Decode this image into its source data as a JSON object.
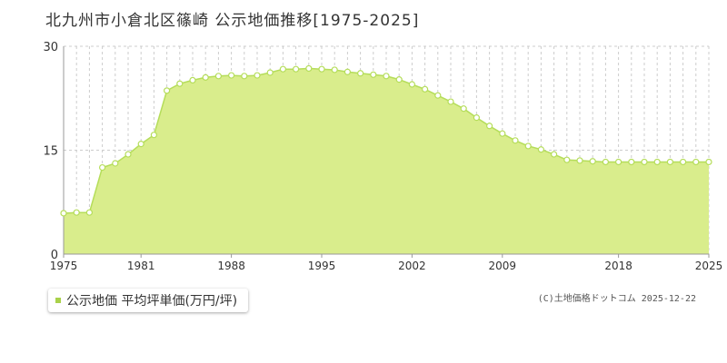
{
  "colors": {
    "fill": "#d9ed8c",
    "line": "#b5dd5a",
    "point_fill": "#ffffff",
    "point_stroke": "#b5dd5a",
    "grid": "#cccccc",
    "axis": "#999999",
    "legend_swatch": "#a9d14a"
  },
  "copyright": "(C)土地価格ドットコム 2025-12-22",
  "chart_data": {
    "type": "area",
    "title": "北九州市小倉北区篠崎 公示地価推移[1975-2025]",
    "xlabel": "",
    "ylabel": "",
    "xlim": [
      1975,
      2025
    ],
    "ylim": [
      0,
      30
    ],
    "yticks": [
      0,
      15,
      30
    ],
    "xticks": [
      1975,
      1981,
      1988,
      1995,
      2002,
      2009,
      2018,
      2025
    ],
    "grid": true,
    "legend_position": "bottom-left",
    "series": [
      {
        "name": "公示地価 平均坪単価(万円/坪)",
        "x": [
          1975,
          1976,
          1977,
          1978,
          1979,
          1980,
          1981,
          1982,
          1983,
          1984,
          1985,
          1986,
          1987,
          1988,
          1989,
          1990,
          1991,
          1992,
          1993,
          1994,
          1995,
          1996,
          1997,
          1998,
          1999,
          2000,
          2001,
          2002,
          2003,
          2004,
          2005,
          2006,
          2007,
          2008,
          2009,
          2010,
          2011,
          2012,
          2013,
          2014,
          2015,
          2016,
          2017,
          2018,
          2019,
          2020,
          2021,
          2022,
          2023,
          2024,
          2025
        ],
        "y": [
          5.9,
          6.0,
          6.0,
          12.5,
          13.1,
          14.4,
          15.9,
          17.2,
          23.6,
          24.6,
          25.1,
          25.5,
          25.7,
          25.8,
          25.7,
          25.8,
          26.2,
          26.7,
          26.7,
          26.8,
          26.7,
          26.6,
          26.3,
          26.1,
          25.9,
          25.7,
          25.2,
          24.5,
          23.8,
          22.9,
          22.0,
          21.0,
          19.7,
          18.5,
          17.4,
          16.4,
          15.6,
          15.1,
          14.4,
          13.6,
          13.5,
          13.4,
          13.3,
          13.3,
          13.3,
          13.3,
          13.3,
          13.3,
          13.3,
          13.3,
          13.3
        ]
      }
    ]
  }
}
